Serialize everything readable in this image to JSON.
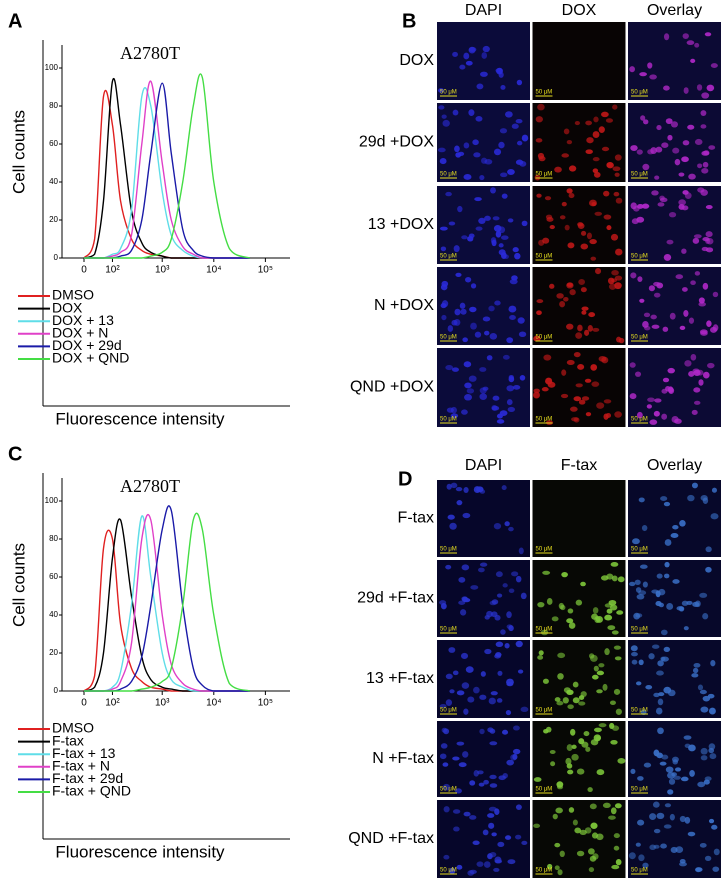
{
  "panel_labels": [
    "A",
    "B",
    "C",
    "D"
  ],
  "chart_data": [
    {
      "type": "line",
      "title": "A2780T",
      "x_label": "Fluorescence intensity",
      "y_label": "Cell counts",
      "x_scale": "biexponential",
      "xlim": [
        -70,
        300000
      ],
      "ylim": [
        0,
        110
      ],
      "xticks": [
        {
          "value": 0,
          "label": "0"
        },
        {
          "value": 100,
          "label": "10²"
        },
        {
          "value": 1000,
          "label": "10³"
        },
        {
          "value": 10000,
          "label": "10⁴"
        },
        {
          "value": 100000,
          "label": "10⁵"
        }
      ],
      "yticks": [
        0,
        20,
        40,
        60,
        80,
        100
      ],
      "x": [
        0,
        30,
        60,
        100,
        150,
        250,
        400,
        600,
        1000,
        1500,
        2500,
        4000,
        6000,
        10000,
        20000,
        50000
      ],
      "series": [
        {
          "name": "DMSO",
          "color": "#e02020",
          "values": [
            0,
            10,
            85,
            70,
            30,
            10,
            4,
            2,
            1,
            0,
            0,
            0,
            0,
            0,
            0,
            0
          ]
        },
        {
          "name": "DOX",
          "color": "#000000",
          "values": [
            0,
            2,
            30,
            93,
            70,
            25,
            8,
            3,
            1,
            0,
            0,
            0,
            0,
            0,
            0,
            0
          ]
        },
        {
          "name": "DOX + 13",
          "color": "#5fdde8",
          "values": [
            0,
            0,
            0,
            2,
            5,
            25,
            85,
            80,
            35,
            12,
            4,
            1,
            0,
            0,
            0,
            0
          ]
        },
        {
          "name": "DOX + N",
          "color": "#e040c8",
          "values": [
            0,
            0,
            0,
            1,
            3,
            12,
            60,
            93,
            50,
            20,
            6,
            2,
            0,
            0,
            0,
            0
          ]
        },
        {
          "name": "DOX + 29d",
          "color": "#1a1aa8",
          "values": [
            0,
            0,
            0,
            0,
            1,
            4,
            20,
            55,
            92,
            55,
            15,
            4,
            1,
            0,
            0,
            0
          ]
        },
        {
          "name": "DOX + QND",
          "color": "#44dd44",
          "values": [
            0,
            0,
            0,
            0,
            0,
            0,
            0,
            1,
            3,
            10,
            40,
            80,
            95,
            40,
            5,
            0
          ]
        }
      ]
    },
    {
      "type": "line",
      "title": "A2780T",
      "x_label": "Fluorescence intensity",
      "y_label": "Cell counts",
      "x_scale": "biexponential",
      "xlim": [
        -70,
        300000
      ],
      "ylim": [
        0,
        110
      ],
      "xticks": [
        {
          "value": 0,
          "label": "0"
        },
        {
          "value": 100,
          "label": "10²"
        },
        {
          "value": 1000,
          "label": "10³"
        },
        {
          "value": 10000,
          "label": "10⁴"
        },
        {
          "value": 100000,
          "label": "10⁵"
        }
      ],
      "yticks": [
        0,
        20,
        40,
        60,
        80,
        100
      ],
      "x": [
        0,
        30,
        60,
        100,
        150,
        250,
        400,
        600,
        1000,
        1500,
        2500,
        4000,
        6000,
        10000,
        20000,
        50000
      ],
      "series": [
        {
          "name": "DMSO",
          "color": "#e02020",
          "values": [
            0,
            8,
            75,
            80,
            35,
            12,
            5,
            2,
            1,
            0,
            0,
            0,
            0,
            0,
            0,
            0
          ]
        },
        {
          "name": "F-tax",
          "color": "#000000",
          "values": [
            0,
            2,
            20,
            70,
            90,
            50,
            18,
            6,
            2,
            1,
            0,
            0,
            0,
            0,
            0,
            0
          ]
        },
        {
          "name": "F-tax + 13",
          "color": "#5fdde8",
          "values": [
            0,
            0,
            0,
            2,
            10,
            45,
            92,
            60,
            20,
            6,
            2,
            0,
            0,
            0,
            0,
            0
          ]
        },
        {
          "name": "F-tax + N",
          "color": "#e040c8",
          "values": [
            0,
            0,
            0,
            1,
            5,
            25,
            80,
            90,
            40,
            14,
            4,
            1,
            0,
            0,
            0,
            0
          ]
        },
        {
          "name": "F-tax + 29d",
          "color": "#1a1aa8",
          "values": [
            0,
            0,
            0,
            0,
            1,
            5,
            18,
            45,
            85,
            95,
            45,
            12,
            3,
            0,
            0,
            0
          ]
        },
        {
          "name": "F-tax + QND",
          "color": "#44dd44",
          "values": [
            0,
            0,
            0,
            0,
            0,
            0,
            1,
            2,
            5,
            12,
            45,
            90,
            85,
            40,
            4,
            0
          ]
        }
      ]
    }
  ],
  "microscopy": [
    {
      "columns": [
        "DAPI",
        "DOX",
        "Overlay"
      ],
      "rows": [
        "DOX",
        "29d +DOX",
        "13 +DOX",
        "N +DOX",
        "QND +DOX"
      ]
    },
    {
      "columns": [
        "DAPI",
        "F-tax",
        "Overlay"
      ],
      "rows": [
        "F-tax",
        "29d +F-tax",
        "13 +F-tax",
        "N +F-tax",
        "QND +F-tax"
      ]
    }
  ],
  "scale_bar": "50 μM"
}
